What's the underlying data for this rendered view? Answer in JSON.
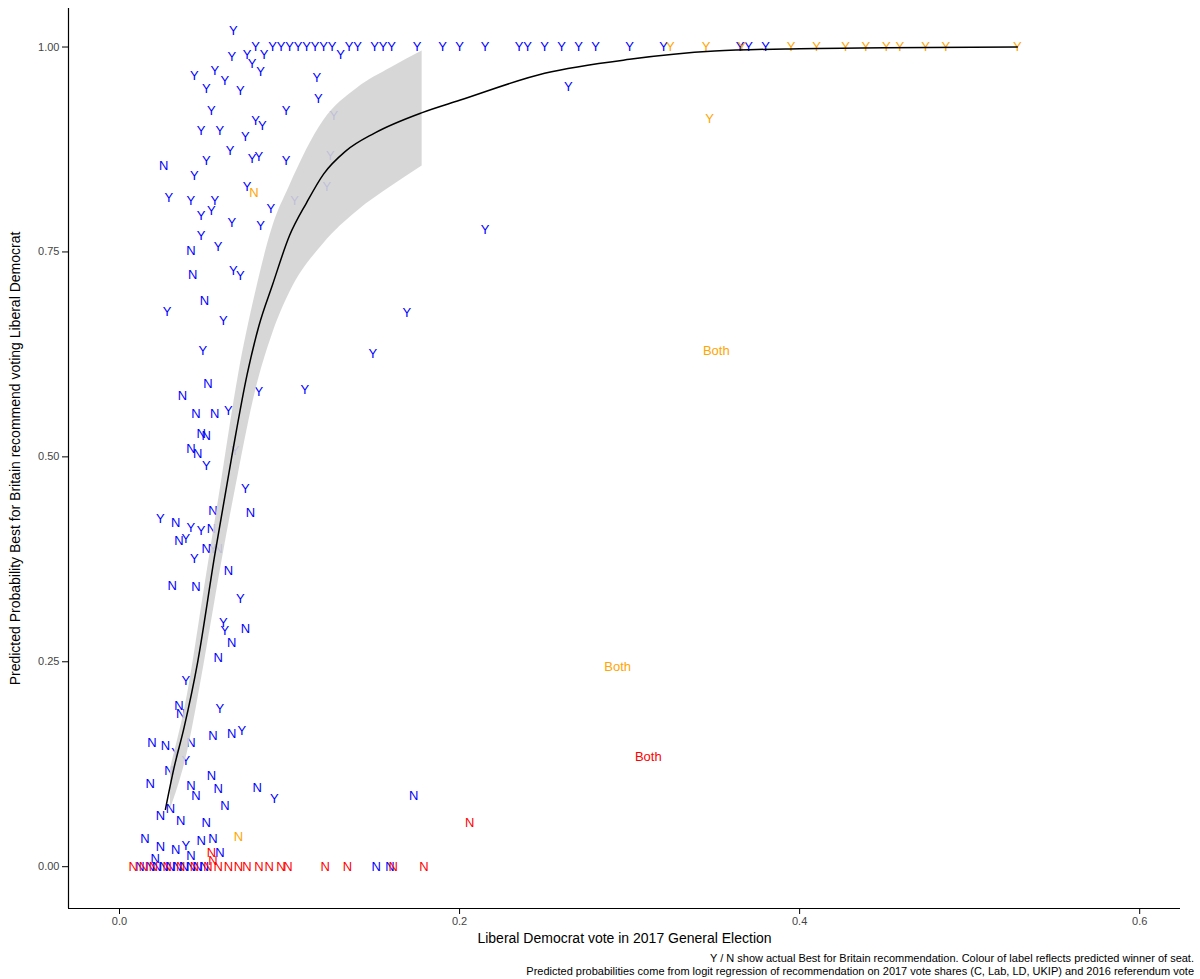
{
  "chart_data": {
    "type": "scatter",
    "xlabel": "Liberal Democrat vote in 2017 General Election",
    "ylabel": "Predicted Probability Best for Britain recommend voting Liberal Democrat",
    "caption": [
      "Y / N show actual Best for Britain recommendation. Colour of label reflects predicted winner of seat.",
      "Predicted probabilities come from logit regression of recommendation on 2017 vote shares (C, Lab, LD, UKIP) and 2016 referendum vote"
    ],
    "xlim": [
      -0.03,
      0.624
    ],
    "ylim": [
      -0.051,
      1.047
    ],
    "xticks": [
      {
        "value": 0,
        "label": "0.0"
      },
      0.2,
      0.4,
      0.6
    ],
    "yticks": [
      {
        "value": 0,
        "label": "0.00"
      },
      0.25,
      {
        "value": 0.5,
        "label": "0.50"
      },
      0.75,
      {
        "value": 1,
        "label": "1.00"
      }
    ],
    "grid": false,
    "series": [
      {
        "type": "text",
        "color": "#0000ff",
        "points": [
          [
            0.075,
            0.99,
            "Y"
          ],
          [
            0.08,
            1.0,
            "Y"
          ],
          [
            0.085,
            0.99,
            "Y"
          ],
          [
            0.09,
            1.0,
            "Y"
          ],
          [
            0.095,
            1.0,
            "Y"
          ],
          [
            0.1,
            1.0,
            "Y"
          ],
          [
            0.105,
            1.0,
            "Y"
          ],
          [
            0.11,
            1.0,
            "Y"
          ],
          [
            0.115,
            1.0,
            "Y"
          ],
          [
            0.12,
            1.0,
            "Y"
          ],
          [
            0.125,
            1.0,
            "Y"
          ],
          [
            0.13,
            0.99,
            "Y"
          ],
          [
            0.135,
            1.0,
            "Y"
          ],
          [
            0.14,
            1.0,
            "Y"
          ],
          [
            0.15,
            1.0,
            "Y"
          ],
          [
            0.155,
            1.0,
            "Y"
          ],
          [
            0.16,
            1.0,
            "Y"
          ],
          [
            0.175,
            1.0,
            "Y"
          ],
          [
            0.19,
            1.0,
            "Y"
          ],
          [
            0.2,
            1.0,
            "Y"
          ],
          [
            0.215,
            1.0,
            "Y"
          ],
          [
            0.235,
            1.0,
            "Y"
          ],
          [
            0.24,
            1.0,
            "Y"
          ],
          [
            0.25,
            1.0,
            "Y"
          ],
          [
            0.26,
            1.0,
            "Y"
          ],
          [
            0.27,
            1.0,
            "Y"
          ],
          [
            0.28,
            1.0,
            "Y"
          ],
          [
            0.3,
            1.0,
            "Y"
          ],
          [
            0.32,
            1.0,
            "Y"
          ],
          [
            0.365,
            1.0,
            "Y"
          ],
          [
            0.37,
            1.0,
            "Y"
          ],
          [
            0.38,
            1.0,
            "Y"
          ],
          [
            0.067,
            1.02,
            "Y"
          ],
          [
            0.078,
            0.98,
            "Y"
          ],
          [
            0.083,
            0.97,
            "Y"
          ],
          [
            0.264,
            0.952,
            "Y"
          ],
          [
            0.215,
            0.777,
            "Y"
          ],
          [
            0.169,
            0.676,
            "Y"
          ],
          [
            0.149,
            0.626,
            "Y"
          ],
          [
            0.109,
            0.582,
            "Y"
          ],
          [
            0.082,
            0.579,
            "Y"
          ],
          [
            0.116,
            0.963,
            "Y"
          ],
          [
            0.117,
            0.937,
            "Y"
          ],
          [
            0.098,
            0.922,
            "Y"
          ],
          [
            0.098,
            0.861,
            "Y"
          ],
          [
            0.103,
            0.812,
            "Y"
          ],
          [
            0.126,
            0.916,
            "Y"
          ],
          [
            0.124,
            0.867,
            "Y"
          ],
          [
            0.122,
            0.83,
            "Y"
          ],
          [
            0.044,
            0.965,
            "Y"
          ],
          [
            0.051,
            0.949,
            "Y"
          ],
          [
            0.056,
            0.971,
            "Y"
          ],
          [
            0.062,
            0.959,
            "Y"
          ],
          [
            0.066,
            0.988,
            "Y"
          ],
          [
            0.071,
            0.946,
            "Y"
          ],
          [
            0.054,
            0.922,
            "Y"
          ],
          [
            0.048,
            0.898,
            "Y"
          ],
          [
            0.059,
            0.898,
            "Y"
          ],
          [
            0.065,
            0.873,
            "Y"
          ],
          [
            0.074,
            0.891,
            "Y"
          ],
          [
            0.08,
            0.91,
            "Y"
          ],
          [
            0.084,
            0.904,
            "Y"
          ],
          [
            0.051,
            0.861,
            "Y"
          ],
          [
            0.056,
            0.812,
            "Y"
          ],
          [
            0.044,
            0.843,
            "Y"
          ],
          [
            0.042,
            0.812,
            "Y"
          ],
          [
            0.048,
            0.794,
            "Y"
          ],
          [
            0.054,
            0.8,
            "Y"
          ],
          [
            0.066,
            0.785,
            "Y"
          ],
          [
            0.058,
            0.756,
            "Y"
          ],
          [
            0.042,
            0.751,
            "N"
          ],
          [
            0.048,
            0.77,
            "Y"
          ],
          [
            0.029,
            0.816,
            "Y"
          ],
          [
            0.026,
            0.855,
            "N"
          ],
          [
            0.067,
            0.727,
            "Y"
          ],
          [
            0.071,
            0.721,
            "Y"
          ],
          [
            0.028,
            0.677,
            "Y"
          ],
          [
            0.05,
            0.69,
            "N"
          ],
          [
            0.075,
            0.829,
            "Y"
          ],
          [
            0.078,
            0.863,
            "Y"
          ],
          [
            0.082,
            0.866,
            "Y"
          ],
          [
            0.083,
            0.782,
            "Y"
          ],
          [
            0.089,
            0.802,
            "Y"
          ],
          [
            0.043,
            0.722,
            "N"
          ],
          [
            0.061,
            0.666,
            "Y"
          ],
          [
            0.049,
            0.629,
            "Y"
          ],
          [
            0.052,
            0.589,
            "N"
          ],
          [
            0.037,
            0.574,
            "N"
          ],
          [
            0.045,
            0.552,
            "N"
          ],
          [
            0.056,
            0.552,
            "N"
          ],
          [
            0.048,
            0.528,
            "N"
          ],
          [
            0.051,
            0.526,
            "N"
          ],
          [
            0.042,
            0.51,
            "N"
          ],
          [
            0.046,
            0.504,
            "N"
          ],
          [
            0.051,
            0.489,
            "Y"
          ],
          [
            0.064,
            0.556,
            "Y"
          ],
          [
            0.055,
            0.434,
            "N"
          ],
          [
            0.068,
            0.507,
            "Y"
          ],
          [
            0.074,
            0.461,
            "Y"
          ],
          [
            0.077,
            0.432,
            "N"
          ],
          [
            0.024,
            0.424,
            "Y"
          ],
          [
            0.033,
            0.42,
            "N"
          ],
          [
            0.042,
            0.413,
            "Y"
          ],
          [
            0.035,
            0.398,
            "N"
          ],
          [
            0.039,
            0.4,
            "Y"
          ],
          [
            0.048,
            0.41,
            "Y"
          ],
          [
            0.054,
            0.412,
            "N"
          ],
          [
            0.055,
            0.388,
            "Y"
          ],
          [
            0.051,
            0.388,
            "N"
          ],
          [
            0.058,
            0.388,
            "N"
          ],
          [
            0.044,
            0.376,
            "Y"
          ],
          [
            0.031,
            0.343,
            "N"
          ],
          [
            0.045,
            0.341,
            "N"
          ],
          [
            0.064,
            0.361,
            "N"
          ],
          [
            0.071,
            0.327,
            "Y"
          ],
          [
            0.062,
            0.288,
            "Y"
          ],
          [
            0.061,
            0.298,
            "Y"
          ],
          [
            0.066,
            0.273,
            "N"
          ],
          [
            0.074,
            0.29,
            "N"
          ],
          [
            0.058,
            0.255,
            "N"
          ],
          [
            0.039,
            0.227,
            "Y"
          ],
          [
            0.059,
            0.193,
            "Y"
          ],
          [
            0.035,
            0.196,
            "N"
          ],
          [
            0.036,
            0.187,
            "N"
          ],
          [
            0.019,
            0.151,
            "N"
          ],
          [
            0.027,
            0.148,
            "N"
          ],
          [
            0.042,
            0.151,
            "N"
          ],
          [
            0.033,
            0.139,
            "Y"
          ],
          [
            0.039,
            0.129,
            "Y"
          ],
          [
            0.055,
            0.16,
            "N"
          ],
          [
            0.066,
            0.162,
            "N"
          ],
          [
            0.072,
            0.166,
            "Y"
          ],
          [
            0.018,
            0.101,
            "N"
          ],
          [
            0.029,
            0.117,
            "N"
          ],
          [
            0.042,
            0.099,
            "N"
          ],
          [
            0.054,
            0.111,
            "N"
          ],
          [
            0.058,
            0.095,
            "N"
          ],
          [
            0.081,
            0.096,
            "N"
          ],
          [
            0.091,
            0.083,
            "Y"
          ],
          [
            0.045,
            0.087,
            "N"
          ],
          [
            0.03,
            0.071,
            "N"
          ],
          [
            0.024,
            0.062,
            "N"
          ],
          [
            0.036,
            0.056,
            "N"
          ],
          [
            0.051,
            0.054,
            "N"
          ],
          [
            0.062,
            0.074,
            "N"
          ],
          [
            0.048,
            0.032,
            "N"
          ],
          [
            0.055,
            0.034,
            "N"
          ],
          [
            0.015,
            0.034,
            "N"
          ],
          [
            0.024,
            0.024,
            "N"
          ],
          [
            0.033,
            0.02,
            "N"
          ],
          [
            0.042,
            0.013,
            "N"
          ],
          [
            0.059,
            0.017,
            "N"
          ],
          [
            0.021,
            0.01,
            "N"
          ],
          [
            0.039,
            0.026,
            "Y"
          ],
          [
            0.173,
            0.087,
            "N"
          ],
          [
            0.151,
            0.0,
            "N"
          ],
          [
            0.159,
            0.0,
            "N"
          ],
          [
            0.012,
            0.0,
            "N"
          ],
          [
            0.018,
            0.0,
            "N"
          ],
          [
            0.022,
            0.0,
            "N"
          ],
          [
            0.026,
            0.0,
            "N"
          ],
          [
            0.03,
            0.0,
            "N"
          ],
          [
            0.034,
            0.0,
            "N"
          ],
          [
            0.038,
            0.0,
            "N"
          ],
          [
            0.042,
            0.0,
            "N"
          ],
          [
            0.046,
            0.0,
            "N"
          ],
          [
            0.05,
            0.0,
            "N"
          ]
        ]
      },
      {
        "type": "text",
        "color": "#ffa500",
        "points": [
          [
            0.324,
            1.0,
            "Y"
          ],
          [
            0.345,
            1.0,
            "Y"
          ],
          [
            0.366,
            1.0,
            "Y"
          ],
          [
            0.395,
            1.0,
            "Y"
          ],
          [
            0.41,
            1.0,
            "Y"
          ],
          [
            0.427,
            1.0,
            "Y"
          ],
          [
            0.439,
            1.0,
            "Y"
          ],
          [
            0.451,
            1.0,
            "Y"
          ],
          [
            0.459,
            1.0,
            "Y"
          ],
          [
            0.474,
            1.0,
            "Y"
          ],
          [
            0.486,
            1.0,
            "Y"
          ],
          [
            0.528,
            1.0,
            "Y"
          ],
          [
            0.347,
            0.912,
            "Y"
          ],
          [
            0.351,
            0.629,
            "Both"
          ],
          [
            0.293,
            0.244,
            "Both"
          ],
          [
            0.079,
            0.822,
            "N"
          ],
          [
            0.07,
            0.037,
            "N"
          ]
        ]
      },
      {
        "type": "text",
        "color": "#ff0000",
        "points": [
          [
            0.311,
            0.134,
            "Both"
          ],
          [
            0.206,
            0.054,
            "N"
          ],
          [
            0.054,
            0.017,
            "N"
          ],
          [
            0.055,
            0.007,
            "N"
          ],
          [
            0.008,
            0.0,
            "N"
          ],
          [
            0.014,
            0.0,
            "N"
          ],
          [
            0.02,
            0.0,
            "N"
          ],
          [
            0.028,
            0.0,
            "N"
          ],
          [
            0.036,
            0.0,
            "N"
          ],
          [
            0.044,
            0.0,
            "N"
          ],
          [
            0.052,
            0.0,
            "N"
          ],
          [
            0.058,
            0.0,
            "N"
          ],
          [
            0.064,
            0.0,
            "N"
          ],
          [
            0.07,
            0.0,
            "N"
          ],
          [
            0.075,
            0.0,
            "N"
          ],
          [
            0.082,
            0.0,
            "N"
          ],
          [
            0.088,
            0.0,
            "N"
          ],
          [
            0.095,
            0.0,
            "N"
          ],
          [
            0.099,
            0.0,
            "N"
          ],
          [
            0.121,
            0.0,
            "N"
          ],
          [
            0.134,
            0.0,
            "N"
          ],
          [
            0.161,
            0.0,
            "N"
          ],
          [
            0.179,
            0.0,
            "N"
          ]
        ]
      },
      {
        "type": "area",
        "color": "#d3d3d3",
        "x": [
          0.03,
          0.04,
          0.05,
          0.06,
          0.07,
          0.08,
          0.09,
          0.1,
          0.12,
          0.14,
          0.16,
          0.178
        ],
        "lower": [
          0.07,
          0.14,
          0.25,
          0.37,
          0.48,
          0.58,
          0.65,
          0.7,
          0.76,
          0.8,
          0.83,
          0.855
        ],
        "upper": [
          0.12,
          0.21,
          0.34,
          0.47,
          0.6,
          0.7,
          0.78,
          0.83,
          0.91,
          0.95,
          0.975,
          0.995
        ]
      },
      {
        "type": "line",
        "color": "#000000",
        "x": [
          0.027,
          0.032,
          0.038,
          0.046,
          0.056,
          0.066,
          0.075,
          0.082,
          0.09,
          0.1,
          0.11,
          0.12,
          0.133,
          0.15,
          0.178,
          0.2,
          0.25,
          0.3,
          0.35,
          0.4,
          0.45,
          0.528
        ],
        "y": [
          0.07,
          0.12,
          0.17,
          0.25,
          0.38,
          0.5,
          0.6,
          0.66,
          0.71,
          0.77,
          0.81,
          0.845,
          0.873,
          0.895,
          0.92,
          0.935,
          0.968,
          0.985,
          0.995,
          0.998,
          0.999,
          1.0
        ]
      }
    ]
  }
}
